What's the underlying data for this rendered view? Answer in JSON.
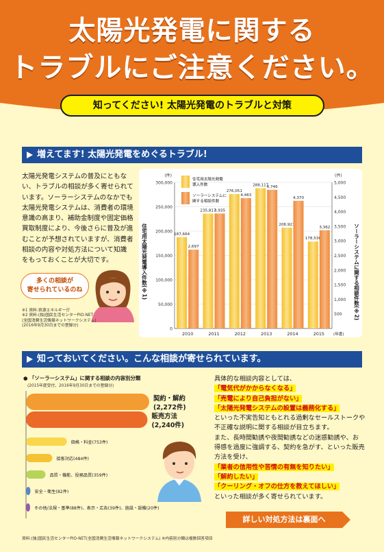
{
  "header": {
    "title_line1": "太陽光発電に関する",
    "title_line2": "トラブルにご注意ください。",
    "subtitle": "知ってください! 太陽光発電のトラブルと対策"
  },
  "section1": {
    "heading": "増えてます! 太陽光発電をめぐるトラブル!",
    "text": "太陽光発電システムの普及にともな\nい、トラブルの相談が多く寄せられて\nいます。ソーラーシステムのなかでも\n太陽光発電システムは、消費者の環境\n意識の高まり、補助金制度や固定価格\n買取制度により、今後さらに普及が進\nむことが予想されていますが、消費者\n相談の内容や対処方法について知識\nをもっておくことが大切です。",
    "speech": "多くの相談が\n寄せられているのね",
    "notes": "※1 資料:資源エネルギー庁\n※2 資料:(独)国民生活センターPIO-NET\n       (全国消費生活情報ネットワークシステム)\n       (2016年9月30日までの登録分)"
  },
  "chart_data": [
    {
      "type": "bar",
      "categories": [
        "2010",
        "2011",
        "2012",
        "2013",
        "2014",
        "2015"
      ],
      "xlabel_unit": "(年度)",
      "y_left": {
        "unit": "(件)",
        "label": "住宅用太陽光発電導入件数(※1)",
        "ylim": [
          0,
          300000
        ],
        "ticks": [
          "0",
          "50,000",
          "100,000",
          "150,000",
          "200,000",
          "250,000",
          "300,000"
        ]
      },
      "y_right": {
        "unit": "(件)",
        "label": "ソーラーシステムに関する相談件数(※2)",
        "ylim": [
          0,
          5000
        ],
        "ticks": [
          "500",
          "1,000",
          "1,500",
          "2,000",
          "2,500",
          "3,000",
          "3,500",
          "4,000",
          "4,500",
          "5,000"
        ]
      },
      "series": [
        {
          "name": "住宅用太陽光発電導入件数",
          "axis": "left",
          "color": "#f6c02a",
          "values": [
            187664,
            235817,
            276051,
            288117,
            206921,
            178536
          ],
          "labels": [
            "187,664",
            "235,817",
            "276,051",
            "288,117",
            "206,921",
            "178,536"
          ]
        },
        {
          "name": "ソーラーシステムに関する相談件数",
          "axis": "right",
          "color": "#ef8a3c",
          "values": [
            2697,
            3935,
            4463,
            4746,
            4370,
            3362
          ],
          "labels": [
            "2,697",
            "3,935",
            "4,463",
            "4,746",
            "4,370",
            "3,362"
          ]
        }
      ],
      "legend": [
        "住宅用太陽光発電\n導入件数",
        "ソーラーシステムに\n関する相談件数"
      ]
    },
    {
      "type": "bar",
      "orientation": "horizontal",
      "title": "「ソーラーシステム」に関する相談の内容別分類",
      "subtitle": "(2015年度受付、2016年9月30日までの登録分)",
      "categories": [
        "契約・解約",
        "販売方法",
        "価格・料金",
        "接客対応",
        "品質・機能、役務品質",
        "安全・衛生",
        "その他"
      ],
      "values": [
        2272,
        2240,
        753,
        484,
        359,
        82,
        20
      ],
      "labels": [
        "契約・解約\n(2,272件)",
        "販売方法\n(2,240件)",
        "価格・料金(753件)",
        "接客対応(484件)",
        "品質・機能、役務品質(359件)",
        "安全・衛生(82件)",
        "その他/法規・基準(88件)、表示・広告(39件)、施設・設備(20件)"
      ],
      "colors": [
        "#f39c32",
        "#eb6a2a",
        "#f8d84a",
        "#f5c233",
        "#b6d45a",
        "#5a86c8",
        "#9a58ac"
      ]
    }
  ],
  "section2": {
    "heading": "知っておいてください。こんな相談が寄せられています。",
    "lines": [
      {
        "text": "具体的な相談内容としては、",
        "red": false
      },
      {
        "text": "「電気代がかからなくなる」",
        "red": true
      },
      {
        "text": "「売電により自己負担がない」",
        "red": true
      },
      {
        "text": "「太陽光発電システムの設置は義務化する」",
        "red": true
      },
      {
        "text": "といった不実告知ともとれる過剰なセールストークや",
        "red": false
      },
      {
        "text": "不正確な説明に関する相談が目立ちます。",
        "red": false
      },
      {
        "text": "また、長時間勧誘や夜間勧誘などの迷惑勧誘や、お",
        "red": false
      },
      {
        "text": "得感を過度に強調する、契約を急がす、といった販売",
        "red": false
      },
      {
        "text": "方法を受け、",
        "red": false
      },
      {
        "text": "「業者の信用性や苦情の有無を知りたい」",
        "red": true
      },
      {
        "text": "「解約したい」",
        "red": true
      },
      {
        "text": "「クーリング・オフの仕方を教えてほしい」",
        "red": true
      },
      {
        "text": "といった相談が多く寄せられています。",
        "red": false
      }
    ],
    "button": "詳しい対処方法は裏面へ",
    "footer": "資料:(独)国民生活センターPIO-NET(全国消費生活情報ネットワークシステム)   ※内容別分類は複数回答項目"
  },
  "colors": {
    "header_orange": "#e8731c",
    "section_blue": "#1f4f9a",
    "page_yellow": "#fff8c9",
    "highlight": "#fff200",
    "accent_red": "#d4111e"
  }
}
